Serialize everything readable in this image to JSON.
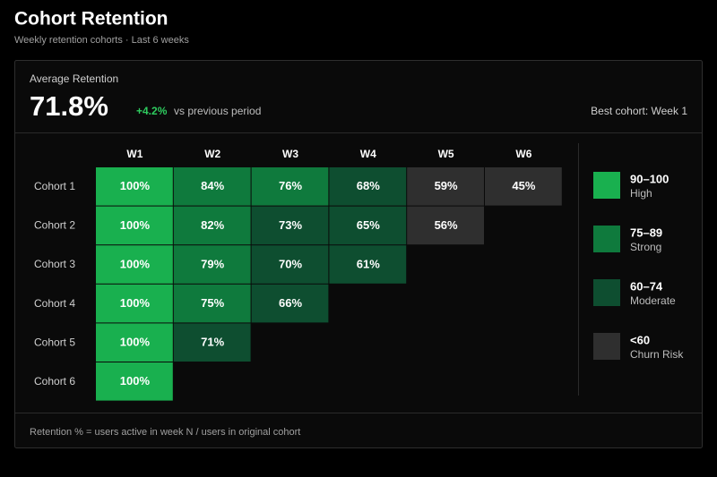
{
  "header": {
    "title": "Cohort Retention",
    "subtitle": "Weekly retention cohorts · Last 6 weeks"
  },
  "kpi": {
    "label": "Average Retention",
    "value": "71.8%",
    "change": "+4.2%",
    "change_text": "vs previous period",
    "best": "Best cohort: Week 1"
  },
  "chart_data": {
    "type": "heatmap",
    "columns": [
      "W1",
      "W2",
      "W3",
      "W4",
      "W5",
      "W6"
    ],
    "categories": [
      "Cohort 1",
      "Cohort 2",
      "Cohort 3",
      "Cohort 4",
      "Cohort 5",
      "Cohort 6"
    ],
    "values": [
      [
        100,
        84,
        76,
        68,
        59,
        45
      ],
      [
        100,
        82,
        73,
        65,
        56
      ],
      [
        100,
        79,
        70,
        61
      ],
      [
        100,
        75,
        66
      ],
      [
        100,
        71
      ],
      [
        100
      ]
    ],
    "value_labels": [
      [
        "100%",
        "84%",
        "76%",
        "68%",
        "59%",
        "45%"
      ],
      [
        "100%",
        "82%",
        "73%",
        "65%",
        "56%"
      ],
      [
        "100%",
        "79%",
        "70%",
        "61%"
      ],
      [
        "100%",
        "75%",
        "66%"
      ],
      [
        "100%",
        "71%"
      ],
      [
        "100%"
      ]
    ],
    "legend": [
      {
        "range": "90–100",
        "label": "High",
        "color": "#19b04f"
      },
      {
        "range": "75–89",
        "label": "Strong",
        "color": "#0f7a3d"
      },
      {
        "range": "60–74",
        "label": "Moderate",
        "color": "#0e4e30"
      },
      {
        "range": "<60",
        "label": "Churn Risk",
        "color": "#2f2f2f"
      }
    ]
  },
  "footnote": "Retention % = users active in week N / users in original cohort"
}
